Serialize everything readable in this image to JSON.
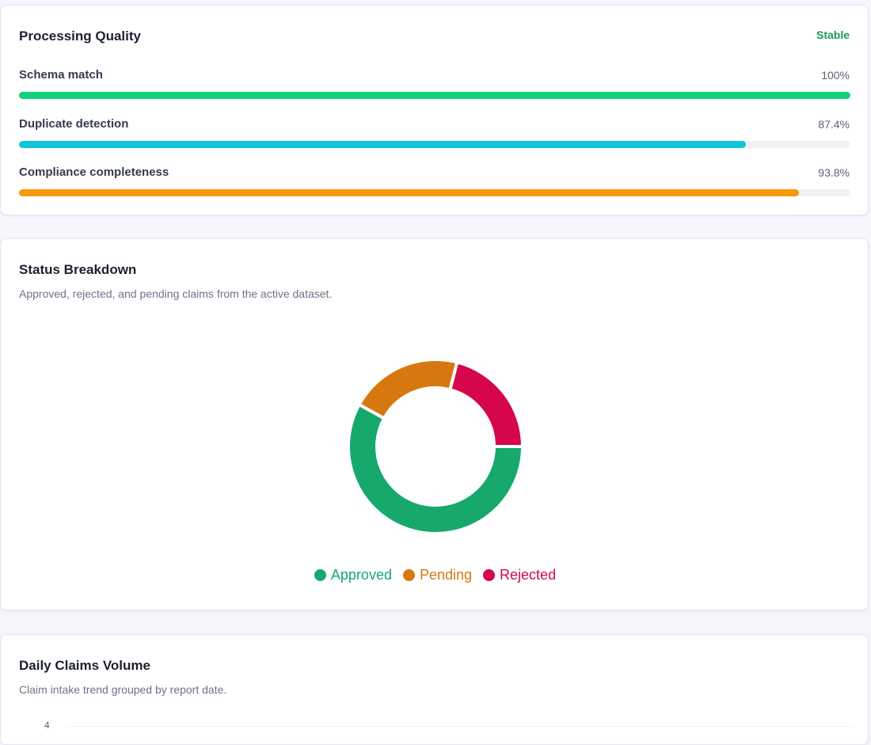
{
  "processing_quality": {
    "title": "Processing Quality",
    "status": "Stable",
    "status_color": "#1a9a5c",
    "metrics": [
      {
        "label": "Schema match",
        "value_text": "100%",
        "fraction": 1.0,
        "color": "#14d07c"
      },
      {
        "label": "Duplicate detection",
        "value_text": "87.4%",
        "fraction": 0.874,
        "color": "#0fc6d6"
      },
      {
        "label": "Compliance completeness",
        "value_text": "93.8%",
        "fraction": 0.938,
        "color": "#f59a0a"
      }
    ]
  },
  "status_breakdown": {
    "title": "Status Breakdown",
    "subtitle": "Approved, rejected, and pending claims from the active dataset."
  },
  "chart_data": {
    "type": "pie",
    "donut": true,
    "categories": [
      "Approved",
      "Pending",
      "Rejected"
    ],
    "values": [
      58,
      21,
      21
    ],
    "colors": [
      "#17a86b",
      "#d6780f",
      "#d5064c"
    ],
    "legend": "bottom-center"
  },
  "daily_claims_volume": {
    "title": "Daily Claims Volume",
    "subtitle": "Claim intake trend grouped by report date.",
    "y_tick_top": "4"
  }
}
